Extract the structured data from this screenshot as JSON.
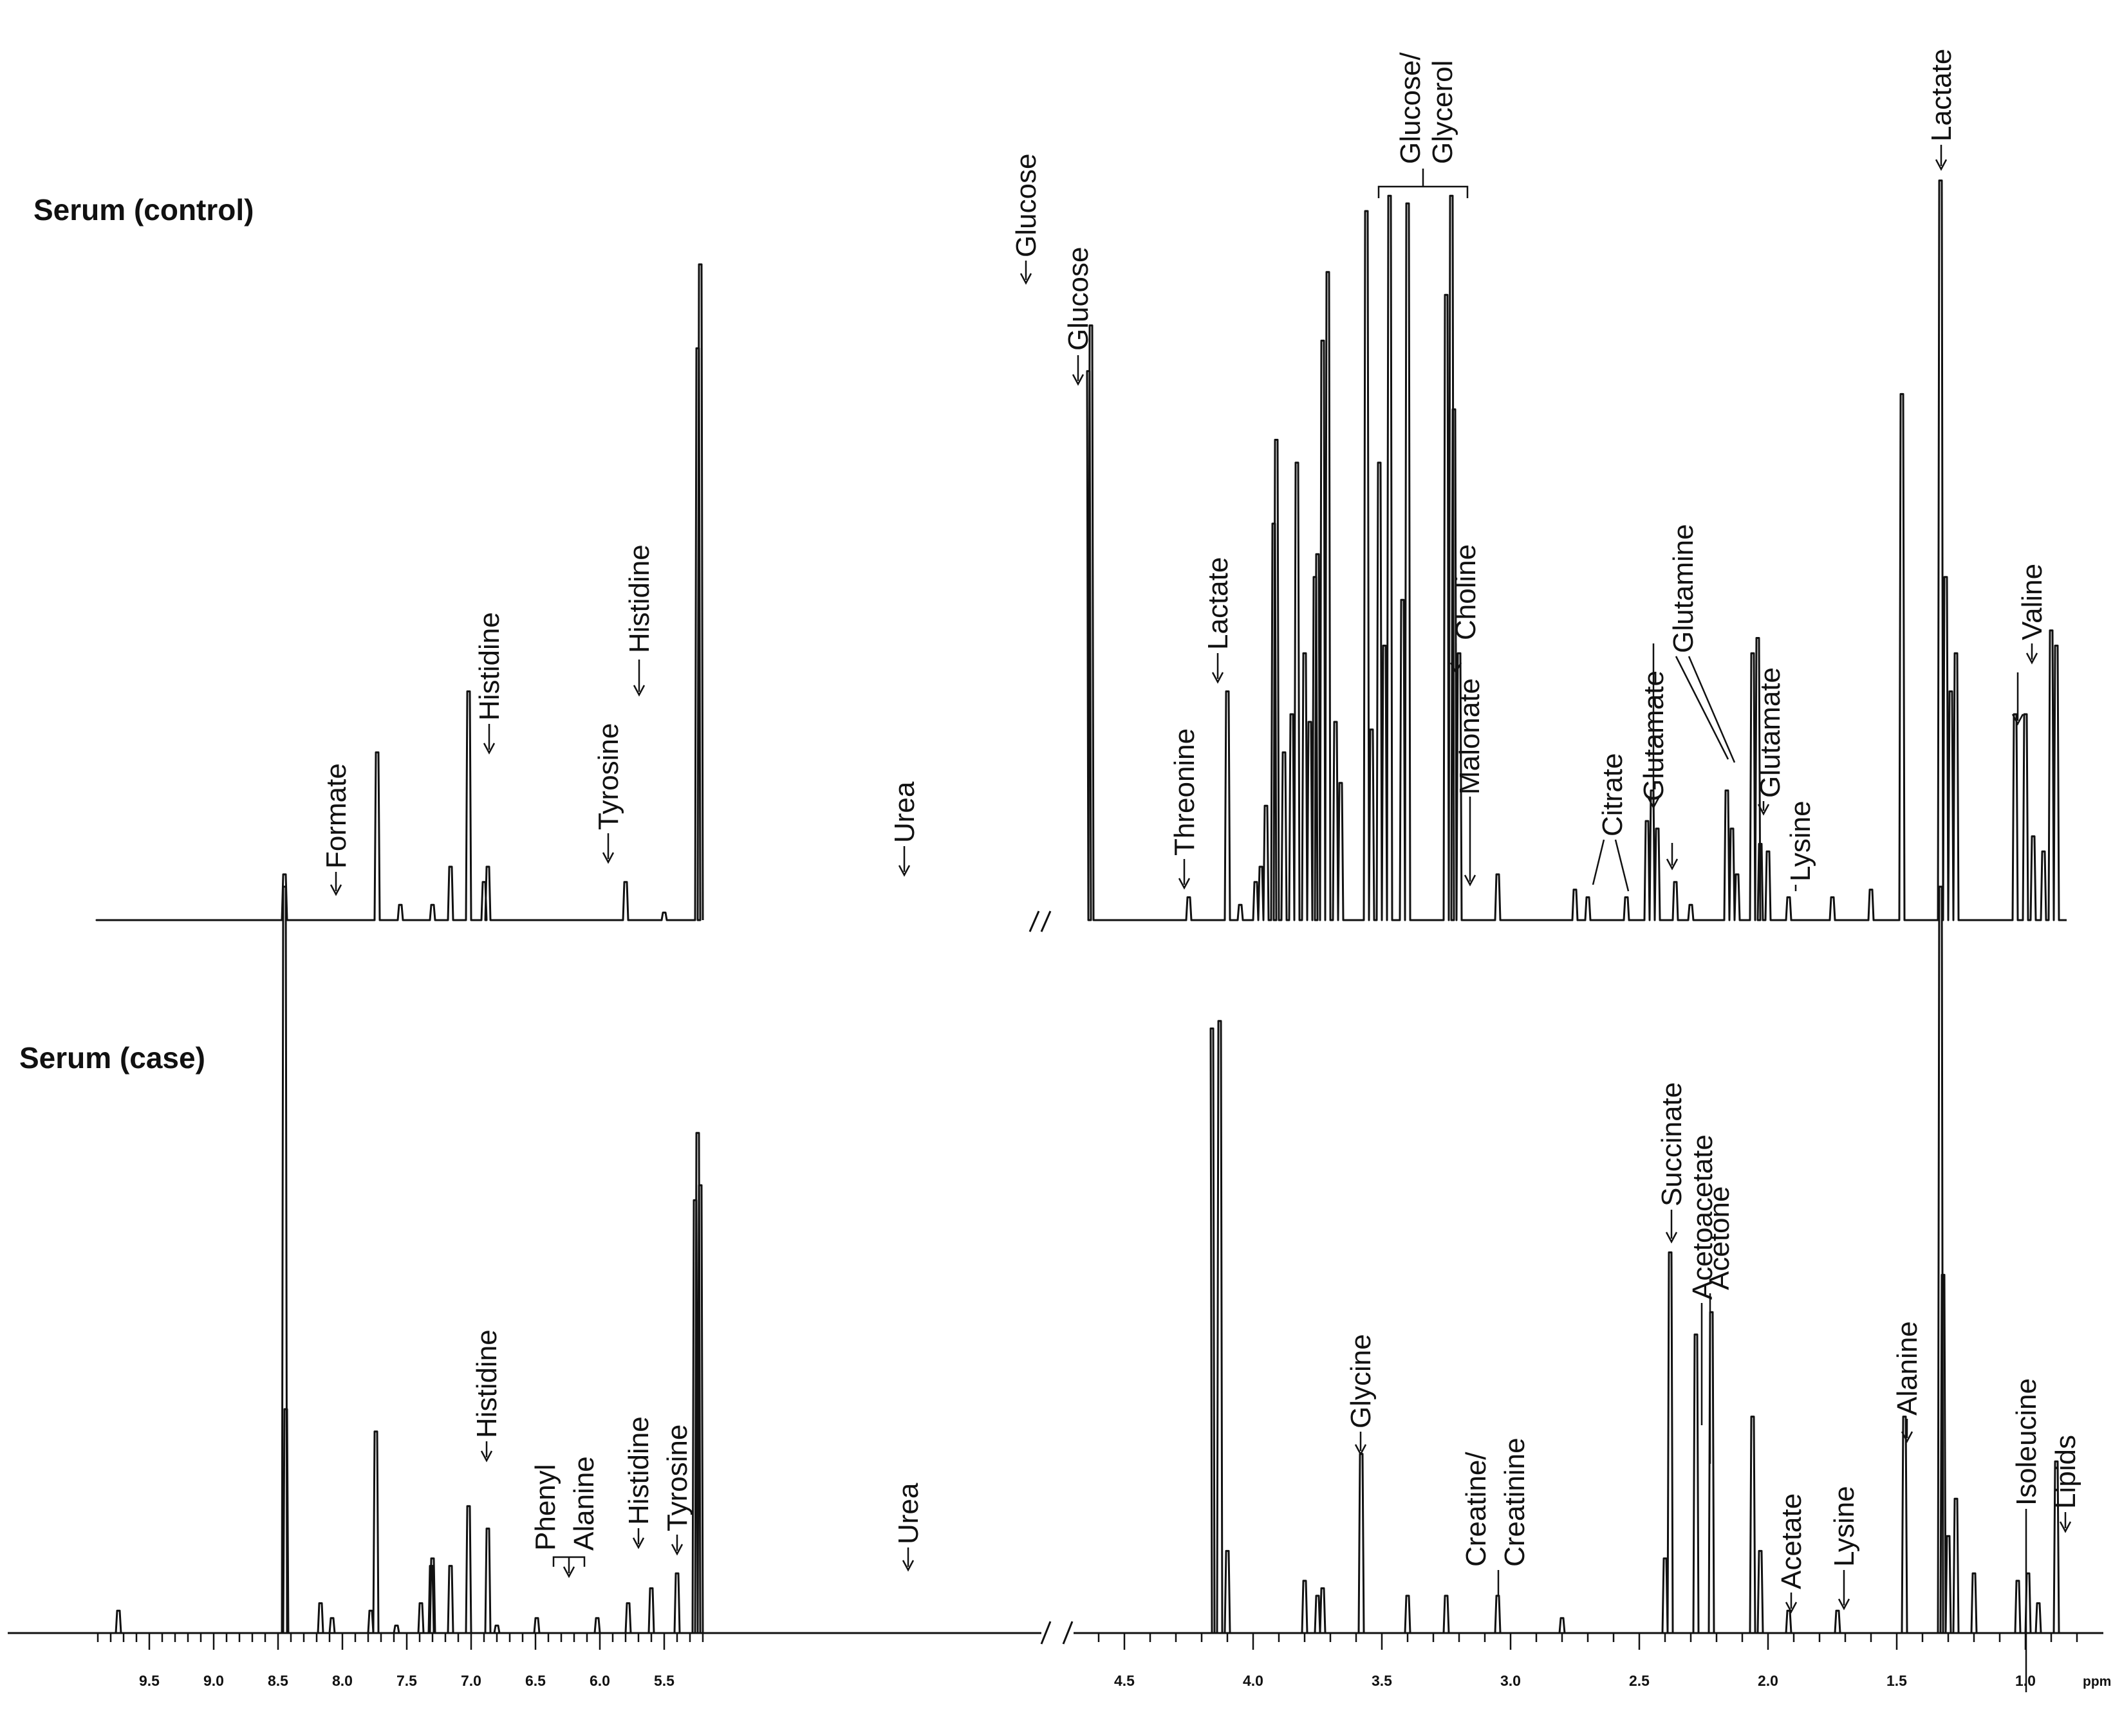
{
  "chart_data": [
    {
      "type": "line",
      "title": "Serum (control)",
      "x_axis_unit": "ppm",
      "x_reversed": true,
      "axis_break_between_ppm": [
        4.7,
        5.2
      ],
      "series": [
        {
          "x": [
            9.9,
            8.45,
            7.73,
            7.55,
            7.3,
            7.16,
            7.02,
            6.9,
            6.87,
            5.8,
            5.5,
            5.24,
            5.22,
            5.18,
            4.64,
            4.63,
            4.25,
            4.1,
            4.05,
            3.99,
            3.97,
            3.95,
            3.92,
            3.91,
            3.88,
            3.85,
            3.83,
            3.8,
            3.78,
            3.76,
            3.75,
            3.73,
            3.71,
            3.68,
            3.66,
            3.56,
            3.54,
            3.51,
            3.49,
            3.47,
            3.42,
            3.4,
            3.25,
            3.23,
            3.22,
            3.2,
            3.05,
            2.75,
            2.7,
            2.55,
            2.47,
            2.45,
            2.43,
            2.36,
            2.3,
            2.16,
            2.14,
            2.12,
            2.06,
            2.04,
            2.03,
            2.0,
            1.92,
            1.75,
            1.6,
            1.48,
            1.33,
            1.31,
            1.29,
            1.27,
            1.04,
            1.0,
            0.97,
            0.93,
            0.9,
            0.88,
            0.85
          ],
          "y": [
            0,
            6,
            22,
            2,
            2,
            7,
            30,
            5,
            7,
            5,
            1,
            75,
            86,
            10,
            72,
            78,
            3,
            30,
            2,
            5,
            7,
            15,
            52,
            63,
            22,
            27,
            60,
            35,
            26,
            45,
            48,
            76,
            85,
            26,
            18,
            93,
            25,
            60,
            36,
            95,
            42,
            94,
            82,
            95,
            67,
            35,
            6,
            4,
            3,
            3,
            13,
            17,
            12,
            5,
            2,
            17,
            12,
            6,
            35,
            37,
            10,
            9,
            3,
            3,
            4,
            69,
            97,
            45,
            30,
            35,
            27,
            27,
            11,
            9,
            38,
            36,
            0
          ]
        }
      ],
      "annotations": [
        "Formate",
        "Histidine",
        "Tyrosine",
        "Histidine",
        "Urea",
        "Glucose",
        "Glucose",
        "Threonine",
        "Lactate",
        "Glucose/",
        "Glycerol",
        "Choline",
        "Malonate",
        "Citrate",
        "Glutamate",
        "Glutamine",
        "Glutamate",
        "Lysine",
        "Lactate",
        "Valine"
      ]
    },
    {
      "type": "line",
      "title": "Serum (case)",
      "x_axis_unit": "ppm",
      "x_reversed": true,
      "axis_break_between_ppm": [
        4.7,
        5.2
      ],
      "series": [
        {
          "x": [
            9.9,
            9.74,
            8.45,
            8.44,
            8.17,
            8.08,
            7.78,
            7.74,
            7.58,
            7.39,
            7.31,
            7.3,
            7.16,
            7.02,
            6.87,
            6.8,
            6.49,
            6.02,
            5.78,
            5.6,
            5.4,
            5.26,
            5.24,
            5.22,
            5.18,
            4.16,
            4.13,
            4.1,
            3.8,
            3.75,
            3.73,
            3.58,
            3.4,
            3.25,
            3.05,
            2.8,
            2.4,
            2.38,
            2.28,
            2.22,
            2.06,
            2.03,
            1.92,
            1.73,
            1.47,
            1.33,
            1.32,
            1.3,
            1.27,
            1.2,
            1.03,
            0.99,
            0.95,
            0.88,
            0.85
          ],
          "y": [
            0,
            3,
            100,
            30,
            4,
            2,
            3,
            27,
            1,
            4,
            9,
            10,
            9,
            17,
            14,
            1,
            2,
            2,
            4,
            6,
            8,
            58,
            67,
            60,
            9,
            81,
            82,
            11,
            7,
            5,
            6,
            24,
            5,
            5,
            5,
            2,
            10,
            51,
            40,
            43,
            29,
            11,
            3,
            3,
            29,
            100,
            48,
            13,
            18,
            8,
            7,
            8,
            4,
            23,
            0
          ]
        }
      ],
      "annotations": [
        "Histidine",
        "Phenyl",
        "Alanine",
        "Histidine",
        "Tyrosine",
        "Urea",
        "Glycine",
        "Creatine/",
        "Creatinine",
        "Succinate",
        "Acetoacetate",
        "Acetone",
        "Acetate",
        "Lysine",
        "Alanine",
        "Isoleucine",
        "Lipids"
      ]
    }
  ],
  "x_axis": {
    "unit_label": "ppm",
    "tick_labels": [
      "9.5",
      "9.0",
      "8.5",
      "8.0",
      "7.5",
      "7.0",
      "6.5",
      "6.0",
      "5.5",
      "4.5",
      "4.0",
      "3.5",
      "3.0",
      "2.5",
      "2.0",
      "1.5",
      "1.0"
    ]
  }
}
